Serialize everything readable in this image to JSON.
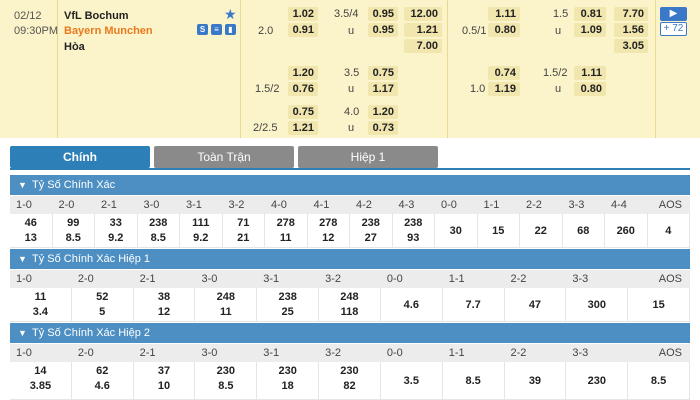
{
  "match": {
    "date": "02/12",
    "time": "09:30PM",
    "team_home": "VfL Bochum",
    "team_away": "Bayern Munchen",
    "draw_label": "Hòa",
    "icon_names": [
      "favorite-star-icon",
      "stats-icon",
      "lineup-icon",
      "chart-icon"
    ],
    "odds_left": {
      "rows": [
        {
          "hcap": "",
          "ou": "3.5/4",
          "ah_home": "1.02",
          "ah_away": "0.91",
          "ou_over": "0.95",
          "ou_under": "0.95",
          "x12_1": "12.00",
          "x12_2": "1.21",
          "x12_x": "7.00",
          "hcap_line": "2.0",
          "ou_side": "u"
        },
        {
          "hcap": "",
          "ou": "3.5",
          "ah_home": "1.20",
          "ah_away": "0.76",
          "ou_over": "0.75",
          "ou_under": "1.17",
          "hcap_line": "1.5/2",
          "ou_side": "u"
        },
        {
          "hcap": "",
          "ou": "4.0",
          "ah_home": "0.75",
          "ah_away": "1.21",
          "ou_over": "1.20",
          "ou_under": "0.73",
          "hcap_line": "2/2.5",
          "ou_side": "u"
        }
      ]
    },
    "odds_right": {
      "rows": [
        {
          "hcap_line": "0.5/1",
          "ou": "1.5",
          "ah_home": "1.11",
          "ah_away": "0.80",
          "ou_over": "0.81",
          "ou_under": "1.09",
          "x12_1": "7.70",
          "x12_2": "1.56",
          "x12_x": "3.05",
          "ou_side": "u"
        },
        {
          "hcap_line": "1.0",
          "ou": "1.5/2",
          "ah_home": "0.74",
          "ah_away": "1.19",
          "ou_over": "1.11",
          "ou_under": "0.80",
          "ou_side": "u"
        }
      ]
    },
    "more_label": "+ 72",
    "arrow_label": "▶"
  },
  "tabs": {
    "main": "Chính",
    "full_match": "Toàn Trận",
    "half1": "Hiệp 1"
  },
  "sections": [
    {
      "title": "Tỷ Số Chính Xác",
      "headers": [
        "1-0",
        "2-0",
        "2-1",
        "3-0",
        "3-1",
        "3-2",
        "4-0",
        "4-1",
        "4-2",
        "4-3",
        "0-0",
        "1-1",
        "2-2",
        "3-3",
        "4-4",
        "AOS"
      ],
      "top": [
        "46",
        "99",
        "33",
        "238",
        "111",
        "71",
        "278",
        "278",
        "238",
        "238",
        "30",
        "15",
        "22",
        "68",
        "260",
        "4"
      ],
      "bottom": [
        "13",
        "8.5",
        "9.2",
        "8.5",
        "9.2",
        "21",
        "11",
        "12",
        "27",
        "93"
      ]
    },
    {
      "title": "Tỷ Số Chính Xác Hiệp 1",
      "headers": [
        "1-0",
        "2-0",
        "2-1",
        "3-0",
        "3-1",
        "3-2",
        "0-0",
        "1-1",
        "2-2",
        "3-3",
        "AOS"
      ],
      "top": [
        "11",
        "52",
        "38",
        "248",
        "238",
        "248",
        "4.6",
        "7.7",
        "47",
        "300",
        "15"
      ],
      "bottom": [
        "3.4",
        "5",
        "12",
        "11",
        "25",
        "118"
      ]
    },
    {
      "title": "Tỷ Số Chính Xác Hiệp 2",
      "headers": [
        "1-0",
        "2-0",
        "2-1",
        "3-0",
        "3-1",
        "3-2",
        "0-0",
        "1-1",
        "2-2",
        "3-3",
        "AOS"
      ],
      "top": [
        "14",
        "62",
        "37",
        "230",
        "230",
        "230",
        "3.5",
        "8.5",
        "39",
        "230",
        "8.5"
      ],
      "bottom": [
        "3.85",
        "4.6",
        "10",
        "8.5",
        "18",
        "82"
      ]
    }
  ],
  "colors": {
    "match_bg": "#fbf3c9",
    "odds_box": "#f1e6ad",
    "accent_blue": "#2d7fb8",
    "section_header": "#4d8fc2",
    "away_team": "#e87a1f"
  }
}
